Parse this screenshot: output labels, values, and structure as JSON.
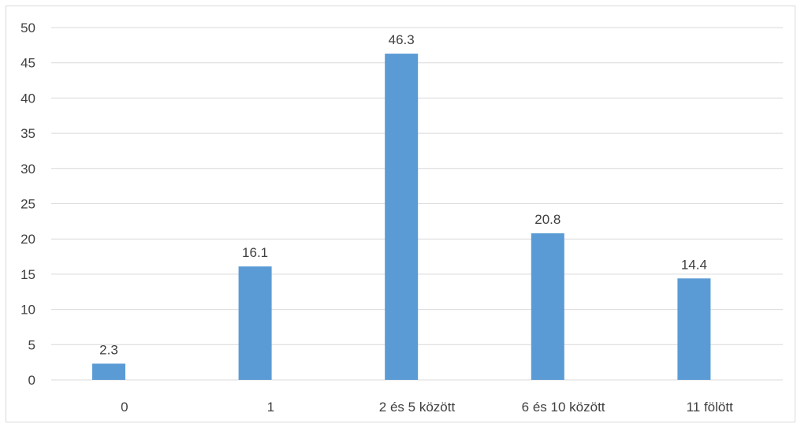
{
  "chart_data": {
    "type": "bar",
    "title": "",
    "xlabel": "",
    "ylabel": "",
    "categories": [
      "0",
      "1",
      "2 és 5 között",
      "6 és 10 között",
      "11 fölött"
    ],
    "values": [
      2.3,
      16.1,
      46.3,
      20.8,
      14.4
    ],
    "data_labels": [
      "2.3",
      "16.1",
      "46.3",
      "20.8",
      "14.4"
    ],
    "ylim": [
      0,
      50
    ],
    "yticks": [
      0,
      5,
      10,
      15,
      20,
      25,
      30,
      35,
      40,
      45,
      50
    ],
    "grid": true,
    "legend": "none",
    "bar_color": "#5b9bd5",
    "grid_color": "#d9d9d9",
    "text_color": "#404040"
  }
}
